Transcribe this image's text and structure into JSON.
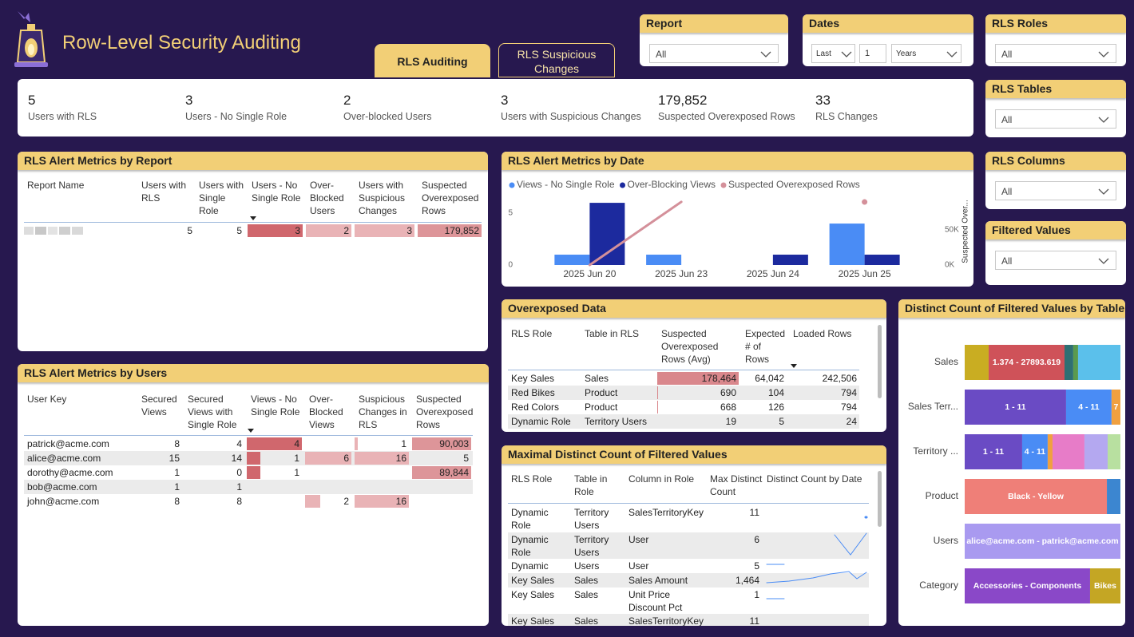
{
  "header": {
    "title": "Row-Level Security Auditing",
    "tabs": [
      "RLS Auditing",
      "RLS Suspicious Changes"
    ]
  },
  "slicers": [
    {
      "title": "Report",
      "value": "All"
    },
    {
      "title": "Dates",
      "period": "Last",
      "count": 1,
      "unit": "Years"
    },
    {
      "title": "RLS Roles",
      "value": "All"
    },
    {
      "title": "RLS Tables",
      "value": "All"
    },
    {
      "title": "RLS Columns",
      "value": "All"
    },
    {
      "title": "Filtered Values",
      "value": "All"
    }
  ],
  "kpis": [
    {
      "value": 5,
      "caption": "Users with RLS"
    },
    {
      "value": 3,
      "caption": "Users - No Single Role"
    },
    {
      "value": 2,
      "caption": "Over-blocked Users"
    },
    {
      "value": 3,
      "caption": "Users with Suspicious Changes"
    },
    {
      "value": 179852,
      "value_label": "179,852",
      "caption": "Suspected Overexposed Rows"
    },
    {
      "value": 33,
      "caption": "RLS Changes"
    }
  ],
  "report_table": {
    "title": "RLS Alert Metrics by Report",
    "columns": [
      "Report Name",
      "Users with RLS",
      "Users with Single Role",
      "Users - No Single Role",
      "Over-Blocked Users",
      "Users with Suspicious Changes",
      "Suspected Overexposed Rows"
    ],
    "rows": [
      [
        null,
        5,
        5,
        3,
        2,
        3,
        {
          "value": 179852,
          "label": "179,852"
        }
      ]
    ]
  },
  "users_table": {
    "title": "RLS Alert Metrics by Users",
    "columns": [
      "User Key",
      "Secured Views",
      "Secured Views with Single Role",
      "Views - No Single Role",
      "Over-Blocked Views",
      "Suspicious Changes in RLS",
      "Suspected Overexposed Rows"
    ],
    "rows": [
      [
        "patrick@acme.com",
        8,
        4,
        4,
        null,
        1,
        {
          "value": 90003,
          "label": "90,003"
        }
      ],
      [
        "alice@acme.com",
        15,
        14,
        1,
        6,
        16,
        5
      ],
      [
        "dorothy@acme.com",
        1,
        0,
        1,
        null,
        null,
        {
          "value": 89844,
          "label": "89,844"
        }
      ],
      [
        "bob@acme.com",
        1,
        1,
        null,
        null,
        null,
        null
      ],
      [
        "john@acme.com",
        8,
        8,
        null,
        2,
        16,
        null
      ]
    ]
  },
  "date_chart": {
    "type": "bar",
    "title": "RLS Alert Metrics by Date",
    "categories": [
      "2025 Jun 20",
      "2025 Jun 23",
      "2025 Jun 24",
      "2025 Jun 25"
    ],
    "series": [
      {
        "name": "Views - No Single Role",
        "color": "#4a8cf5",
        "values": [
          1,
          1,
          null,
          4
        ]
      },
      {
        "name": "Over-Blocking Views",
        "color": "#1c2a9e",
        "values": [
          6,
          null,
          1,
          1
        ]
      },
      {
        "name": "Suspected Overexposed Rows",
        "color": "#d4909a",
        "type": "line",
        "axis": "y2",
        "values": [
          0,
          90003,
          null,
          89844
        ]
      }
    ],
    "ylim": [
      0,
      6.7
    ],
    "yticks": [
      0,
      5
    ],
    "y2lim": [
      0,
      99000
    ],
    "y2ticks": [
      {
        "value": 0,
        "label": "0K"
      },
      {
        "value": 50000,
        "label": "50K"
      }
    ],
    "y2label": "Suspected Over...",
    "legend": "top-left"
  },
  "overexposed_table": {
    "title": "Overexposed Data",
    "columns": [
      "RLS Role",
      "Table in RLS",
      "Suspected Overexposed Rows (Avg)",
      "Expected # of Rows",
      "Loaded Rows"
    ],
    "rows": [
      [
        "Key Sales",
        "Sales",
        {
          "value": 178464,
          "label": "178,464"
        },
        {
          "value": 64042,
          "label": "64,042"
        },
        {
          "value": 242506,
          "label": "242,506"
        }
      ],
      [
        "Red Bikes",
        "Product",
        690,
        104,
        794
      ],
      [
        "Red Colors",
        "Product",
        668,
        126,
        794
      ],
      [
        "Dynamic Role",
        "Territory Users",
        19,
        5,
        24
      ]
    ]
  },
  "maximal_table": {
    "title": "Maximal Distinct Count of Filtered Values",
    "columns": [
      "RLS Role",
      "Table in Role",
      "Column in Role",
      "Max Distinct Count",
      "Distinct Count by Date"
    ],
    "rows": [
      [
        "Dynamic Role",
        "Territory Users",
        "SalesTerritoryKey",
        11,
        null
      ],
      [
        "Dynamic Role",
        "Territory Users",
        "User",
        6,
        null
      ],
      [
        "Dynamic Role",
        "Users",
        "User",
        5,
        null
      ],
      [
        "Key Sales",
        "Sales",
        "Sales Amount",
        {
          "value": 1464,
          "label": "1,464"
        },
        null
      ],
      [
        "Key Sales",
        "Sales",
        "Unit Price Discount Pct",
        1,
        null
      ],
      [
        "Key Sales",
        "Sales",
        "SalesTerritoryKey",
        11,
        null
      ]
    ]
  },
  "distinct_chart": {
    "type": "bar",
    "orientation": "horizontal",
    "stacked": "percent",
    "title": "Distinct Count of Filtered Values by Table",
    "categories": [
      "Sales",
      "Sales Terr...",
      "Territory ...",
      "Product",
      "Users",
      "Category"
    ],
    "xlim": [
      0,
      100
    ],
    "segments": [
      [
        {
          "value": 15.4,
          "color": "#c9ad22"
        },
        {
          "value": 48.7,
          "color": "#cf5259",
          "label": "1.374 - 27893.619"
        },
        {
          "value": 5.6,
          "color": "#2f6f73"
        },
        {
          "value": 3.1,
          "color": "#5a9a4e"
        },
        {
          "value": 27.2,
          "color": "#5bc0eb"
        }
      ],
      [
        {
          "value": 65.1,
          "color": "#6a4bc4",
          "label": "1 - 11"
        },
        {
          "value": 29.2,
          "color": "#4a8cf5",
          "label": "4 - 11"
        },
        {
          "value": 5.7,
          "color": "#f0a040",
          "label": "7"
        }
      ],
      [
        {
          "value": 36.9,
          "color": "#6a4bc4",
          "label": "1 - 11"
        },
        {
          "value": 16.4,
          "color": "#4a8cf5",
          "label": "4 - 11"
        },
        {
          "value": 3.1,
          "color": "#f0a040"
        },
        {
          "value": 20.5,
          "color": "#e77cc8"
        },
        {
          "value": 14.9,
          "color": "#b4a8f0"
        },
        {
          "value": 8.2,
          "color": "#b8e0a0"
        }
      ],
      [
        {
          "value": 91.3,
          "color": "#ef7f78",
          "label": "Black - Yellow"
        },
        {
          "value": 8.7,
          "color": "#3c86d0"
        }
      ],
      [
        {
          "value": 100,
          "color": "#a99af0",
          "label": "alice@acme.com - patrick@acme.com"
        }
      ],
      [
        {
          "value": 80.5,
          "color": "#8a48c8",
          "label": "Accessories - Components"
        },
        {
          "value": 19.5,
          "color": "#c4a624",
          "label": "Bikes"
        }
      ]
    ]
  }
}
